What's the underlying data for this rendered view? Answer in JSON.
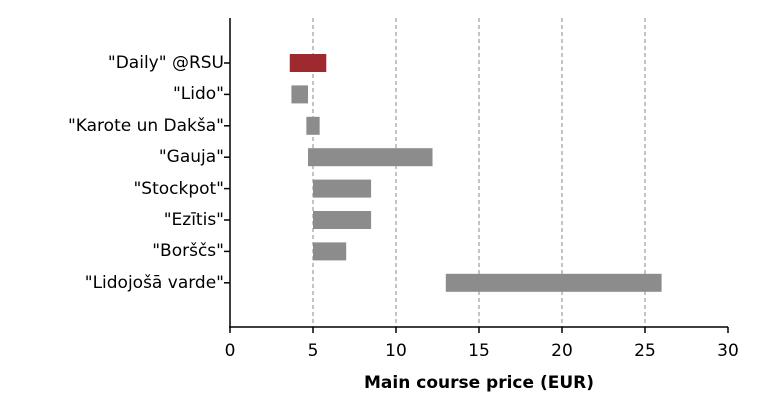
{
  "chart_data": {
    "type": "bar",
    "orientation": "horizontal-range",
    "title": "",
    "xlabel": "Main course price (EUR)",
    "ylabel": "",
    "xlim": [
      0,
      30
    ],
    "xticks": [
      0,
      5,
      10,
      15,
      20,
      25,
      30
    ],
    "grid": {
      "x": true,
      "y": false,
      "style": "dashed"
    },
    "legend": null,
    "categories": [
      "\"Daily\" @RSU",
      "\"Lido\"",
      "\"Karote un Dakša\"",
      "\"Gauja\"",
      "\"Stockpot\"",
      "\"Ezītis\"",
      "\"Borščs\"",
      "\"Lidojošā varde\""
    ],
    "ranges": [
      {
        "label": "\"Daily\" @RSU",
        "min": 3.6,
        "max": 5.8,
        "highlight": true
      },
      {
        "label": "\"Lido\"",
        "min": 3.7,
        "max": 4.7,
        "highlight": false
      },
      {
        "label": "\"Karote un Dakša\"",
        "min": 4.6,
        "max": 5.4,
        "highlight": false
      },
      {
        "label": "\"Gauja\"",
        "min": 4.7,
        "max": 12.2,
        "highlight": false
      },
      {
        "label": "\"Stockpot\"",
        "min": 5.0,
        "max": 8.5,
        "highlight": false
      },
      {
        "label": "\"Ezītis\"",
        "min": 5.0,
        "max": 8.5,
        "highlight": false
      },
      {
        "label": "\"Borščs\"",
        "min": 5.0,
        "max": 7.0,
        "highlight": false
      },
      {
        "label": "\"Lidojošā varde\"",
        "min": 13.0,
        "max": 26.0,
        "highlight": false
      }
    ],
    "colors": {
      "highlight": "#9e2a2f",
      "default": "#8c8c8c",
      "grid": "#8a8a8a",
      "axis": "#000000"
    }
  }
}
